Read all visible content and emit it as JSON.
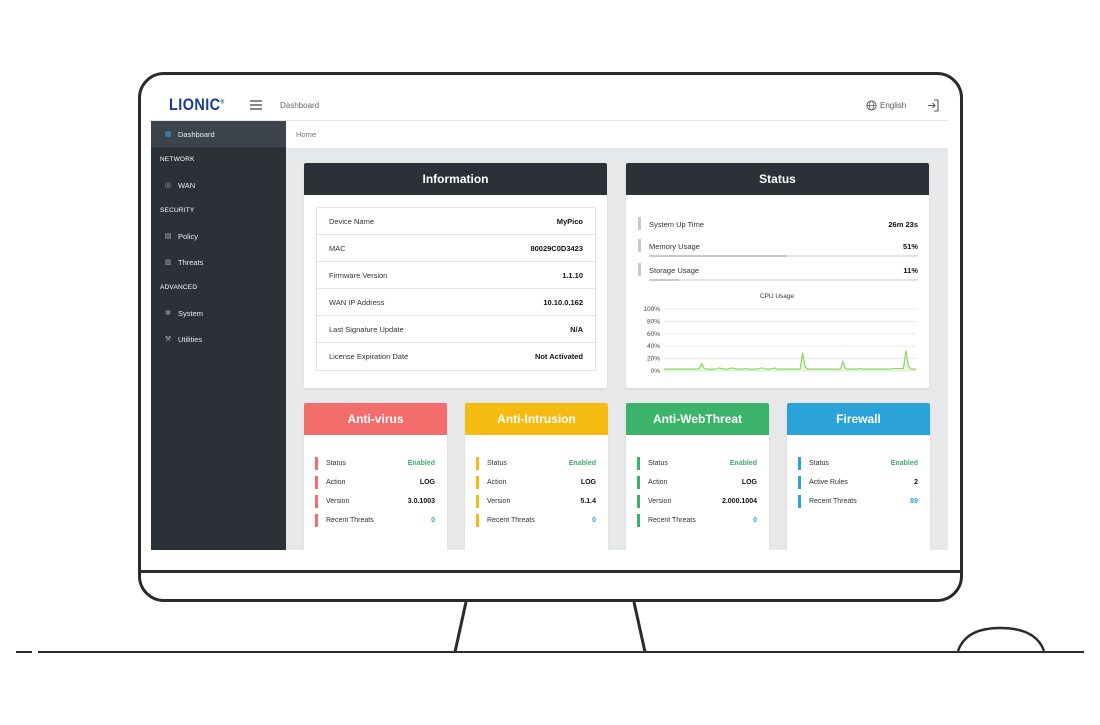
{
  "app": {
    "logo_text": "LIONIC",
    "logo_mark": "®",
    "topbar_title": "Dashboard",
    "language": "English",
    "brand_color": "#1b3b8f"
  },
  "sidebar": {
    "items": [
      {
        "type": "item",
        "label": "Dashboard",
        "icon": "dashboard-icon",
        "active": true
      },
      {
        "type": "header",
        "label": "NETWORK"
      },
      {
        "type": "item",
        "label": "WAN",
        "icon": "globe-icon"
      },
      {
        "type": "header",
        "label": "SECURITY"
      },
      {
        "type": "item",
        "label": "Policy",
        "icon": "document-icon"
      },
      {
        "type": "item",
        "label": "Threats",
        "icon": "list-icon"
      },
      {
        "type": "header",
        "label": "ADVANCED"
      },
      {
        "type": "item",
        "label": "System",
        "icon": "gear-icon"
      },
      {
        "type": "item",
        "label": "Utilities",
        "icon": "wrench-icon"
      }
    ]
  },
  "breadcrumb": "Home",
  "information": {
    "title": "Information",
    "rows": [
      {
        "label": "Device Name",
        "value": "MyPico"
      },
      {
        "label": "MAC",
        "value": "80029C0D3423"
      },
      {
        "label": "Firmware Version",
        "value": "1.1.10"
      },
      {
        "label": "WAN IP Address",
        "value": "10.10.0.162"
      },
      {
        "label": "Last Signature Update",
        "value": "N/A"
      },
      {
        "label": "License Expiration Date",
        "value": "Not Activated"
      }
    ]
  },
  "status": {
    "title": "Status",
    "rows": [
      {
        "label": "System Up Time",
        "value": "26m 23s"
      },
      {
        "label": "Memory Usage",
        "value": "51%",
        "fraction": 0.51
      },
      {
        "label": "Storage Usage",
        "value": "11%",
        "fraction": 0.11
      }
    ],
    "cpu_title": "CPU Usage"
  },
  "chart_data": {
    "type": "area",
    "title": "CPU Usage",
    "y_ticks": [
      "100%",
      "80%",
      "60%",
      "40%",
      "20%",
      "0%"
    ],
    "ylim": [
      0,
      100
    ],
    "values": [
      3,
      3,
      3,
      3,
      3,
      3,
      3,
      3,
      3,
      3,
      3,
      3,
      3,
      3,
      4,
      12,
      4,
      3,
      3,
      3,
      3,
      4,
      5,
      4,
      3,
      3,
      4,
      5,
      4,
      3,
      3,
      3,
      4,
      3,
      3,
      3,
      3,
      3,
      4,
      5,
      4,
      3,
      3,
      4,
      5,
      3,
      3,
      3,
      3,
      3,
      3,
      3,
      3,
      3,
      3,
      29,
      7,
      3,
      3,
      3,
      3,
      3,
      3,
      3,
      3,
      3,
      3,
      3,
      3,
      3,
      3,
      15,
      4,
      3,
      3,
      3,
      3,
      3,
      4,
      3,
      3,
      3,
      3,
      3,
      3,
      3,
      3,
      3,
      3,
      3,
      3,
      4,
      4,
      4,
      4,
      4,
      33,
      8,
      3,
      3,
      3
    ],
    "series_color": "#8bd35a",
    "grid": true
  },
  "modules": [
    {
      "title": "Anti-virus",
      "color": "#f46d6d",
      "rows": [
        {
          "label": "Status",
          "value": "Enabled",
          "style": "green"
        },
        {
          "label": "Action",
          "value": "LOG",
          "style": ""
        },
        {
          "label": "Version",
          "value": "3.0.1003",
          "style": ""
        },
        {
          "label": "Recent Threats",
          "value": "0",
          "style": "blue"
        }
      ]
    },
    {
      "title": "Anti-Intrusion",
      "color": "#f6bb10",
      "rows": [
        {
          "label": "Status",
          "value": "Enabled",
          "style": "green"
        },
        {
          "label": "Action",
          "value": "LOG",
          "style": ""
        },
        {
          "label": "Version",
          "value": "5.1.4",
          "style": ""
        },
        {
          "label": "Recent Threats",
          "value": "0",
          "style": "blue"
        }
      ]
    },
    {
      "title": "Anti-WebThreat",
      "color": "#3bb36a",
      "rows": [
        {
          "label": "Status",
          "value": "Enabled",
          "style": "green"
        },
        {
          "label": "Action",
          "value": "LOG",
          "style": ""
        },
        {
          "label": "Version",
          "value": "2.000.1004",
          "style": ""
        },
        {
          "label": "Recent Threats",
          "value": "0",
          "style": "blue"
        }
      ]
    },
    {
      "title": "Firewall",
      "color": "#2ba3d9",
      "rows": [
        {
          "label": "Status",
          "value": "Enabled",
          "style": "green"
        },
        {
          "label": "Active Rules",
          "value": "2",
          "style": ""
        },
        {
          "label": "Recent Threats",
          "value": "89",
          "style": "blue"
        }
      ]
    }
  ]
}
